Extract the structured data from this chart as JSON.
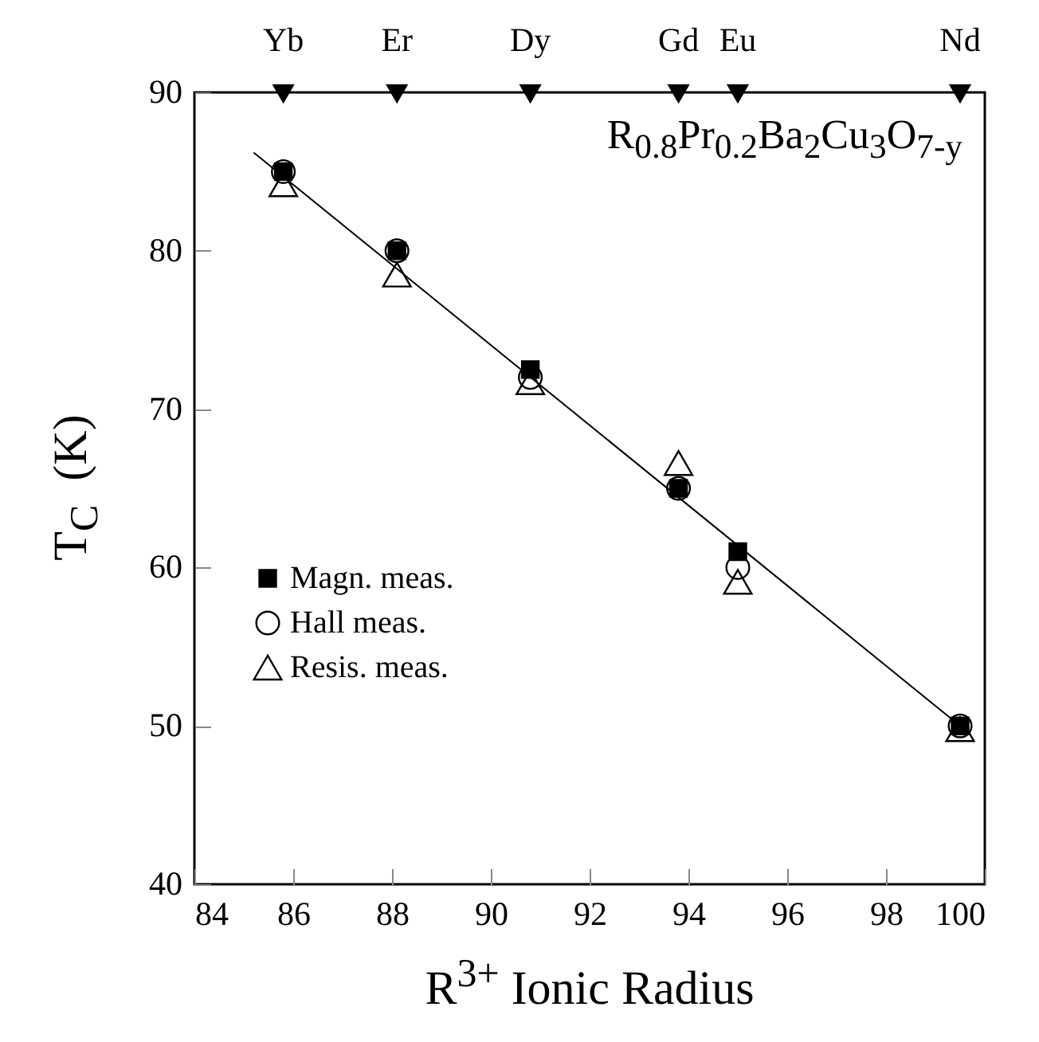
{
  "chart_data": {
    "type": "scatter",
    "xlabel": "R$^{3+}$ Ionic Radius",
    "ylabel": "T$_{C}$  (K)",
    "annotations": [
      "R$_{0.8}$Pr$_{0.2}$Ba$_{2}$Cu$_{3}$O$_{7-y}$",
      {
        "text": "Yb",
        "x": 85.8,
        "y": 90
      },
      {
        "text": "Er",
        "x": 88.1,
        "y": 90
      },
      {
        "text": "Dy",
        "x": 90.8,
        "y": 90
      },
      {
        "text": "Gd",
        "x": 93.8,
        "y": 90
      },
      {
        "text": "Eu",
        "x": 95.0,
        "y": 90
      },
      {
        "text": "Nd",
        "x": 99.5,
        "y": 90
      }
    ],
    "xlim": [
      84,
      100
    ],
    "xticks": [
      84,
      86,
      88,
      90,
      92,
      94,
      96,
      98,
      100
    ],
    "ylim": [
      40,
      90
    ],
    "yticks": [
      40,
      50,
      60,
      70,
      80,
      90
    ],
    "x": [
      85.8,
      88.1,
      90.8,
      93.8,
      95.0,
      99.5
    ],
    "series": [
      {
        "name": "Magn. meas.",
        "color": "#000000",
        "marker": "square",
        "values": [
          85,
          80,
          72.5,
          65,
          61,
          50
        ]
      },
      {
        "name": "Hall    meas.",
        "color": "#000000",
        "marker": "circle",
        "values": [
          85,
          80,
          72,
          65,
          60,
          50
        ]
      },
      {
        "name": "Resis. meas.",
        "color": "#000000",
        "marker": "triangle",
        "values": [
          84.2,
          78.5,
          71.7,
          66.6,
          59.1,
          49.8
        ]
      },
      {
        "type": "line",
        "color": "#000000",
        "marker": "none",
        "x": [
          85.2,
          99.5
        ],
        "values": [
          86.2,
          50
        ]
      }
    ],
    "grid": false,
    "legend": "bottom left"
  }
}
